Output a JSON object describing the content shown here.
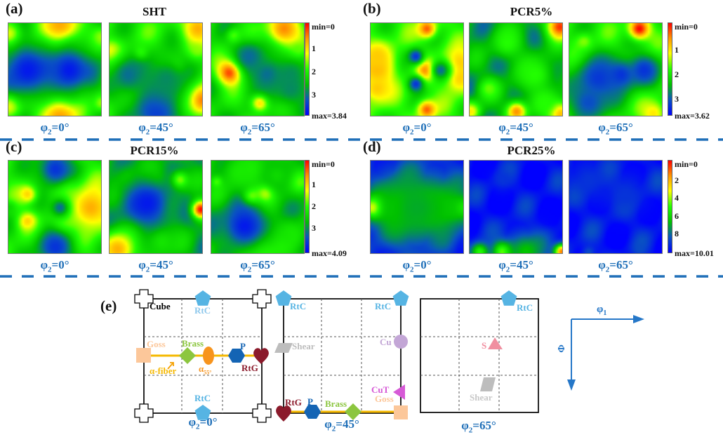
{
  "figure": {
    "rows": [
      {
        "letter": "(a)",
        "title": "SHT",
        "cbar": {
          "min_label": "min=0",
          "max_label": "max=3.84",
          "ticks": [
            "1",
            "2",
            "3"
          ],
          "max": 3.84
        }
      },
      {
        "letter": "(b)",
        "title": "PCR5%",
        "cbar": {
          "min_label": "min=0",
          "max_label": "max=3.62",
          "ticks": [
            "1",
            "2",
            "3"
          ],
          "max": 3.62
        }
      },
      {
        "letter": "(c)",
        "title": "PCR15%",
        "cbar": {
          "min_label": "min=0",
          "max_label": "max=4.09",
          "ticks": [
            "1",
            "2",
            "3"
          ],
          "max": 4.09
        }
      },
      {
        "letter": "(d)",
        "title": "PCR25%",
        "cbar": {
          "min_label": "min=0",
          "max_label": "max=10.01",
          "ticks": [
            "2",
            "4",
            "6",
            "8"
          ],
          "max": 10.01
        }
      }
    ],
    "section_labels": {
      "phi0": "φ",
      "phi_sub": "2",
      "phi_vals": [
        "=0°",
        "=45°",
        "=65°"
      ]
    },
    "colormap": [
      "#0000ff",
      "#0a55c0",
      "#00c000",
      "#22ff00",
      "#ffff00",
      "#ff9900",
      "#ff0000"
    ],
    "separator_color": "#1f6fb8",
    "schematic": {
      "letter": "(e)",
      "axes": {
        "x_label": "φ",
        "x_sub": "1",
        "y_label": "Φ"
      },
      "grids": [
        {
          "caption": "=0°",
          "components": [
            {
              "name": "Cube",
              "label": "Cube",
              "color": "#000000"
            },
            {
              "name": "RtC-top",
              "label": "RtC",
              "color": "#56b4e3"
            },
            {
              "name": "RtC-bottom",
              "label": "RtC",
              "color": "#56b4e3"
            },
            {
              "name": "Goss",
              "label": "Goss",
              "color": "#fcc79a"
            },
            {
              "name": "Brass",
              "label": "Brass",
              "color": "#8cc63f"
            },
            {
              "name": "alpha55",
              "label": "α",
              "sub": "55°",
              "color": "#f7941d"
            },
            {
              "name": "P",
              "label": "P",
              "color": "#1464b4"
            },
            {
              "name": "RtG",
              "label": "RtG",
              "color": "#8b1a2b"
            },
            {
              "name": "alpha-fiber",
              "label": "α-fiber",
              "color": "#f5b800"
            }
          ]
        },
        {
          "caption": "=45°",
          "components": [
            {
              "name": "RtC-left",
              "label": "RtC",
              "color": "#56b4e3"
            },
            {
              "name": "RtC-right",
              "label": "RtC",
              "color": "#56b4e3"
            },
            {
              "name": "Shear",
              "label": "Shear",
              "color": "#bdbdbd"
            },
            {
              "name": "Cu",
              "label": "Cu",
              "color": "#c3a6d6"
            },
            {
              "name": "CuT",
              "label": "CuT",
              "color": "#d65ad6"
            },
            {
              "name": "Goss",
              "label": "Goss",
              "color": "#fcc79a"
            },
            {
              "name": "RtG",
              "label": "RtG",
              "color": "#8b1a2b"
            },
            {
              "name": "P",
              "label": "P",
              "color": "#1464b4"
            },
            {
              "name": "Brass",
              "label": "Brass",
              "color": "#8cc63f"
            }
          ]
        },
        {
          "caption": "=65°",
          "components": [
            {
              "name": "RtC",
              "label": "RtC",
              "color": "#56b4e3"
            },
            {
              "name": "S",
              "label": "S",
              "color": "#f08fa0"
            },
            {
              "name": "Shear",
              "label": "Shear",
              "color": "#bdbdbd"
            }
          ]
        }
      ]
    }
  }
}
